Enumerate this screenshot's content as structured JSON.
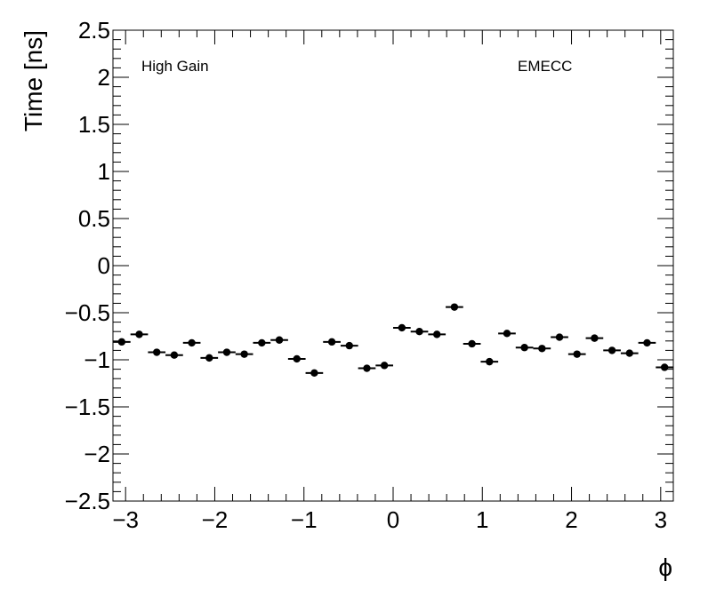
{
  "chart_data": {
    "type": "scatter",
    "xlabel": "ϕ",
    "ylabel": "Time [ns]",
    "xlim": [
      -3.1416,
      3.1416
    ],
    "ylim": [
      -2.5,
      2.5
    ],
    "x_ticks": [
      -3,
      -2,
      -1,
      0,
      1,
      2,
      3
    ],
    "y_ticks": [
      -2.5,
      -2,
      -1.5,
      -1,
      -0.5,
      0,
      0.5,
      1,
      1.5,
      2,
      2.5
    ],
    "annotations": [
      {
        "text": "High Gain",
        "position": "top-left"
      },
      {
        "text": "EMECC",
        "position": "top-right"
      }
    ],
    "grid": false,
    "series": [
      {
        "marker": "filled-circle",
        "color": "#000000",
        "x_bin_width": 0.19635,
        "x": [
          -3.0434,
          -2.8471,
          -2.6507,
          -2.4544,
          -2.258,
          -2.0617,
          -1.8653,
          -1.669,
          -1.4726,
          -1.2763,
          -1.0799,
          -0.8836,
          -0.6872,
          -0.4909,
          -0.2945,
          -0.0982,
          0.0982,
          0.2945,
          0.4909,
          0.6872,
          0.8836,
          1.0799,
          1.2763,
          1.4726,
          1.669,
          1.8653,
          2.0617,
          2.258,
          2.4544,
          2.6507,
          2.8471,
          3.0434
        ],
        "y": [
          -0.81,
          -0.73,
          -0.92,
          -0.95,
          -0.82,
          -0.98,
          -0.92,
          -0.94,
          -0.82,
          -0.79,
          -0.99,
          -1.14,
          -0.81,
          -0.85,
          -1.09,
          -1.06,
          -0.66,
          -0.7,
          -0.73,
          -0.44,
          -0.83,
          -1.02,
          -0.72,
          -0.87,
          -0.88,
          -0.76,
          -0.94,
          -0.77,
          -0.9,
          -0.93,
          -0.82,
          -1.08
        ]
      }
    ]
  }
}
